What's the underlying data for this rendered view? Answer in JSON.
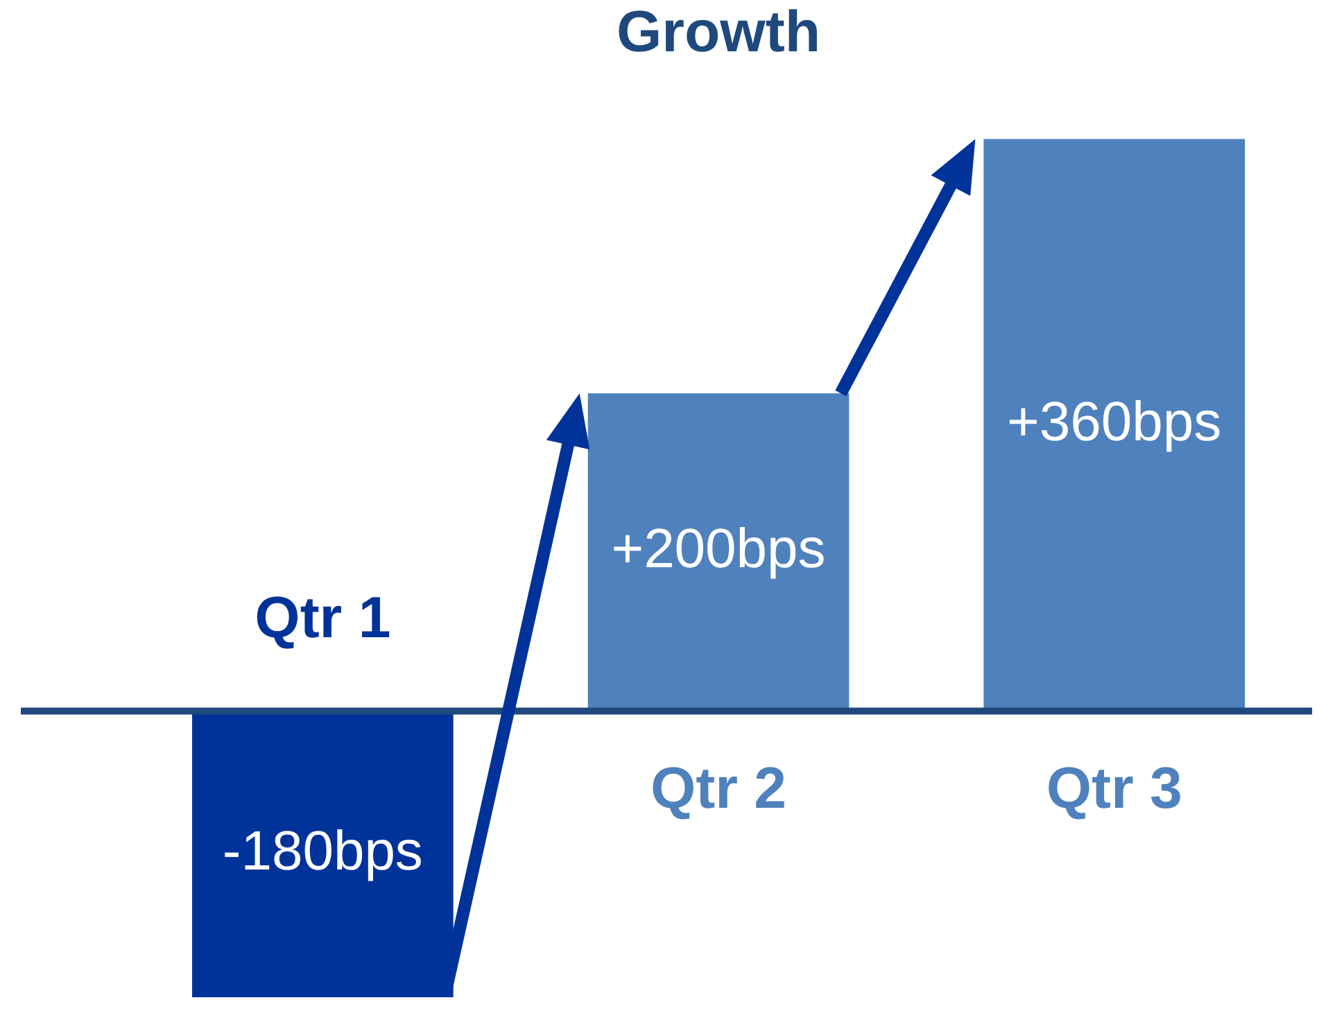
{
  "chart_data": {
    "type": "bar",
    "title": "Growth",
    "categories": [
      "Qtr 1",
      "Qtr 2",
      "Qtr 3"
    ],
    "values": [
      -180,
      200,
      360
    ],
    "colors": [
      "#003399",
      "#4f81bd",
      "#4f81bd"
    ],
    "value_labels": [
      "-180bps",
      "+200bps",
      "+360bps"
    ]
  }
}
